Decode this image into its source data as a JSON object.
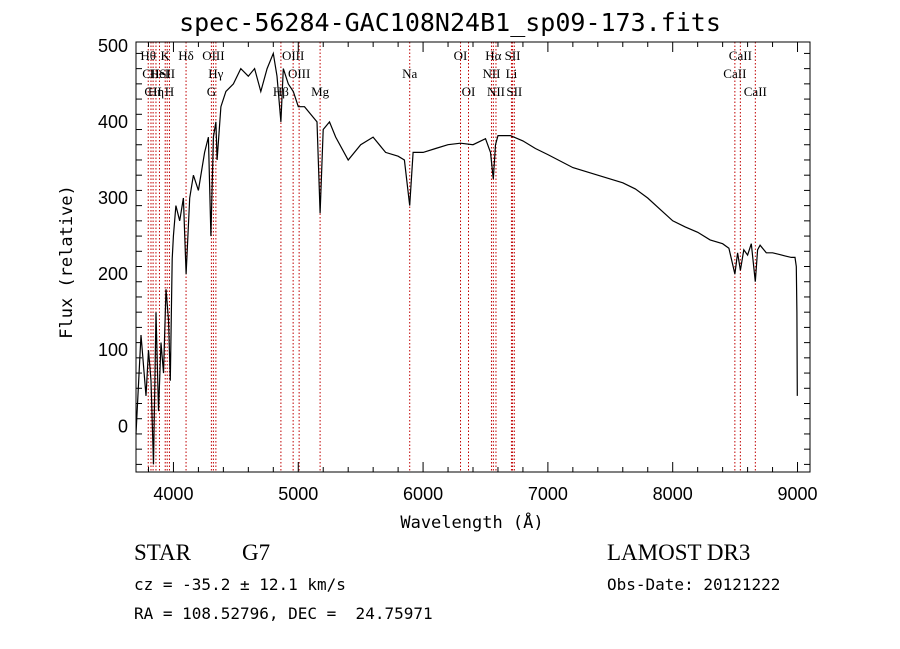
{
  "title": "spec-56284-GAC108N24B1_sp09-173.fits",
  "chart_data": {
    "type": "line",
    "title": "spec-56284-GAC108N24B1_sp09-173.fits",
    "xlabel": "Wavelength (Å)",
    "ylabel": "Flux (relative)",
    "xlim": [
      3700,
      9100
    ],
    "ylim": [
      -60,
      505
    ],
    "xticks": [
      4000,
      5000,
      6000,
      7000,
      8000,
      9000
    ],
    "yticks": [
      0,
      100,
      200,
      300,
      400,
      500
    ],
    "grid": false,
    "series": [
      {
        "name": "spectrum",
        "x": [
          3700,
          3740,
          3780,
          3800,
          3820,
          3840,
          3860,
          3880,
          3900,
          3920,
          3940,
          3960,
          3975,
          3990,
          4000,
          4020,
          4050,
          4080,
          4101,
          4130,
          4160,
          4200,
          4250,
          4280,
          4300,
          4320,
          4340,
          4350,
          4380,
          4420,
          4480,
          4540,
          4600,
          4650,
          4700,
          4750,
          4800,
          4830,
          4861,
          4880,
          4920,
          4960,
          5000,
          5050,
          5100,
          5150,
          5175,
          5200,
          5250,
          5300,
          5400,
          5500,
          5600,
          5700,
          5800,
          5850,
          5893,
          5920,
          6000,
          6100,
          6200,
          6300,
          6400,
          6500,
          6540,
          6563,
          6580,
          6600,
          6700,
          6800,
          6900,
          7000,
          7200,
          7400,
          7600,
          7700,
          7800,
          7900,
          8000,
          8100,
          8200,
          8300,
          8400,
          8450,
          8498,
          8520,
          8542,
          8570,
          8600,
          8630,
          8662,
          8680,
          8700,
          8750,
          8800,
          8850,
          8900,
          8950,
          8980,
          8990,
          8995,
          8998
        ],
        "y": [
          -10,
          120,
          40,
          100,
          60,
          -50,
          150,
          20,
          110,
          70,
          180,
          140,
          60,
          220,
          250,
          290,
          270,
          300,
          200,
          300,
          330,
          310,
          360,
          380,
          250,
          380,
          400,
          350,
          420,
          440,
          450,
          470,
          460,
          470,
          440,
          470,
          490,
          460,
          400,
          470,
          450,
          440,
          420,
          420,
          410,
          400,
          280,
          390,
          400,
          380,
          350,
          370,
          380,
          360,
          355,
          350,
          290,
          360,
          360,
          365,
          370,
          372,
          370,
          378,
          360,
          325,
          370,
          382,
          382,
          375,
          365,
          357,
          340,
          330,
          320,
          312,
          300,
          285,
          270,
          262,
          255,
          245,
          240,
          234,
          200,
          228,
          205,
          232,
          225,
          240,
          190,
          232,
          238,
          228,
          228,
          226,
          224,
          222,
          222,
          210,
          150,
          40
        ]
      }
    ],
    "lines": [
      {
        "name": "Hθ",
        "wavelength": 3798,
        "row": 1
      },
      {
        "name": "CII",
        "wavelength": 3820,
        "row": 2
      },
      {
        "name": "CII",
        "wavelength": 3837,
        "row": 3
      },
      {
        "name": "Hη",
        "wavelength": 3860,
        "row": 3
      },
      {
        "name": "HeI",
        "wavelength": 3888,
        "row": 2
      },
      {
        "name": "K",
        "wavelength": 3934,
        "row": 1
      },
      {
        "name": "SII",
        "wavelength": 3950,
        "row": 2
      },
      {
        "name": "H",
        "wavelength": 3968,
        "row": 3
      },
      {
        "name": "Hδ",
        "wavelength": 4101,
        "row": 1
      },
      {
        "name": "OIII",
        "wavelength": 4320,
        "row": 1
      },
      {
        "name": "Hγ",
        "wavelength": 4340,
        "row": 2
      },
      {
        "name": "G",
        "wavelength": 4304,
        "row": 3
      },
      {
        "name": "Hβ",
        "wavelength": 4861,
        "row": 3
      },
      {
        "name": "OIII",
        "wavelength": 4959,
        "row": 1
      },
      {
        "name": "OIII",
        "wavelength": 5007,
        "row": 2
      },
      {
        "name": "Mg",
        "wavelength": 5175,
        "row": 3
      },
      {
        "name": "Na",
        "wavelength": 5893,
        "row": 2
      },
      {
        "name": "OI",
        "wavelength": 6300,
        "row": 1
      },
      {
        "name": "OI",
        "wavelength": 6364,
        "row": 3
      },
      {
        "name": "Hα",
        "wavelength": 6563,
        "row": 1
      },
      {
        "name": "NII",
        "wavelength": 6548,
        "row": 2
      },
      {
        "name": "NII",
        "wavelength": 6584,
        "row": 3
      },
      {
        "name": "SII",
        "wavelength": 6717,
        "row": 1
      },
      {
        "name": "Li",
        "wavelength": 6708,
        "row": 2
      },
      {
        "name": "SII",
        "wavelength": 6731,
        "row": 3
      },
      {
        "name": "CaII",
        "wavelength": 8542,
        "row": 1
      },
      {
        "name": "CaII",
        "wavelength": 8498,
        "row": 2
      },
      {
        "name": "CaII",
        "wavelength": 8662,
        "row": 3
      }
    ]
  },
  "info": {
    "class_label": "STAR",
    "subclass": "G7",
    "survey": "LAMOST DR3",
    "cz": "cz = -35.2 ± 12.1 km/s",
    "obs_date": "Obs-Date: 20121222",
    "coords": "RA = 108.52796, DEC =  24.75971"
  }
}
